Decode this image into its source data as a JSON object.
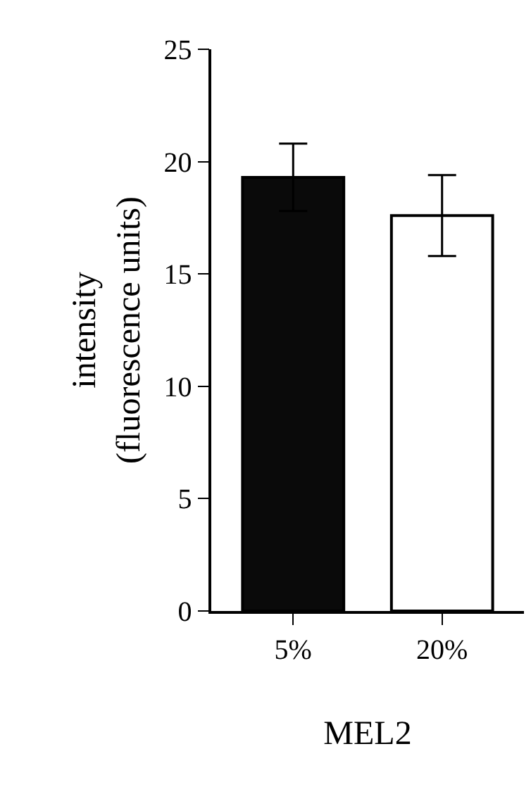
{
  "chart_data": {
    "type": "bar",
    "xlabel": "MEL2",
    "ylabel": "intensity\n(fluorescence units)",
    "categories": [
      "5%",
      "20%"
    ],
    "values": [
      19.3,
      17.6
    ],
    "errors": [
      1.5,
      1.8
    ],
    "colors": [
      "#0a0a0a",
      "#ffffff"
    ],
    "ylim": [
      0,
      25
    ],
    "yticks": [
      0,
      5,
      10,
      15,
      20,
      25
    ]
  }
}
